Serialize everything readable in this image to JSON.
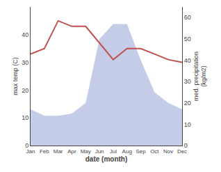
{
  "chart_data": {
    "type": "line",
    "categories": [
      "Jan",
      "Feb",
      "Mar",
      "Apr",
      "May",
      "Jun",
      "Jul",
      "Aug",
      "Sep",
      "Oct",
      "Nov",
      "Dec"
    ],
    "series": [
      {
        "type": "area",
        "axis": "y2",
        "color": "#c5cce8",
        "values": [
          17,
          14,
          14,
          15,
          20,
          50,
          57,
          57,
          40,
          25,
          20,
          17
        ]
      },
      {
        "type": "line",
        "color": "#c0504d",
        "values": [
          33,
          35,
          45,
          43,
          43,
          37,
          31,
          35,
          35,
          33,
          31,
          30
        ]
      }
    ],
    "xlabel": "date (month)",
    "ylabel": "max temp (C)",
    "y2label": "med. precipitation\n(kg/m2)",
    "ylim": [
      0,
      50
    ],
    "yticks": [
      0,
      10,
      20,
      30,
      40
    ],
    "y2lim": [
      0,
      65
    ],
    "y2ticks": [
      0,
      10,
      20,
      30,
      40,
      50,
      60
    ],
    "grid": false
  }
}
